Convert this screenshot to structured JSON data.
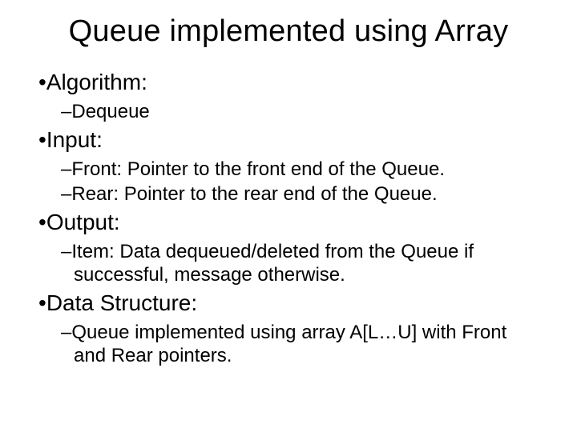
{
  "title": "Queue implemented using Array",
  "sections": {
    "algorithm": {
      "label": "Algorithm:",
      "items": {
        "dequeue": "Dequeue"
      }
    },
    "input": {
      "label": "Input:",
      "items": {
        "front": "Front: Pointer to the front end of the Queue.",
        "rear": "Rear: Pointer to the rear end of the Queue."
      }
    },
    "output": {
      "label": "Output:",
      "items": {
        "item": "Item: Data dequeued/deleted from the Queue if successful, message otherwise."
      }
    },
    "dataStructure": {
      "label": "Data Structure:",
      "items": {
        "ds": "Queue implemented using array A[L…U] with Front and Rear pointers."
      }
    }
  },
  "glyphs": {
    "bullet": "•",
    "dash": "–"
  },
  "colors": {
    "background": "#ffffff",
    "text": "#000000"
  },
  "typography": {
    "font_family": "Arial",
    "title_fontsize": 38,
    "level1_fontsize": 28,
    "level2_fontsize": 24
  }
}
